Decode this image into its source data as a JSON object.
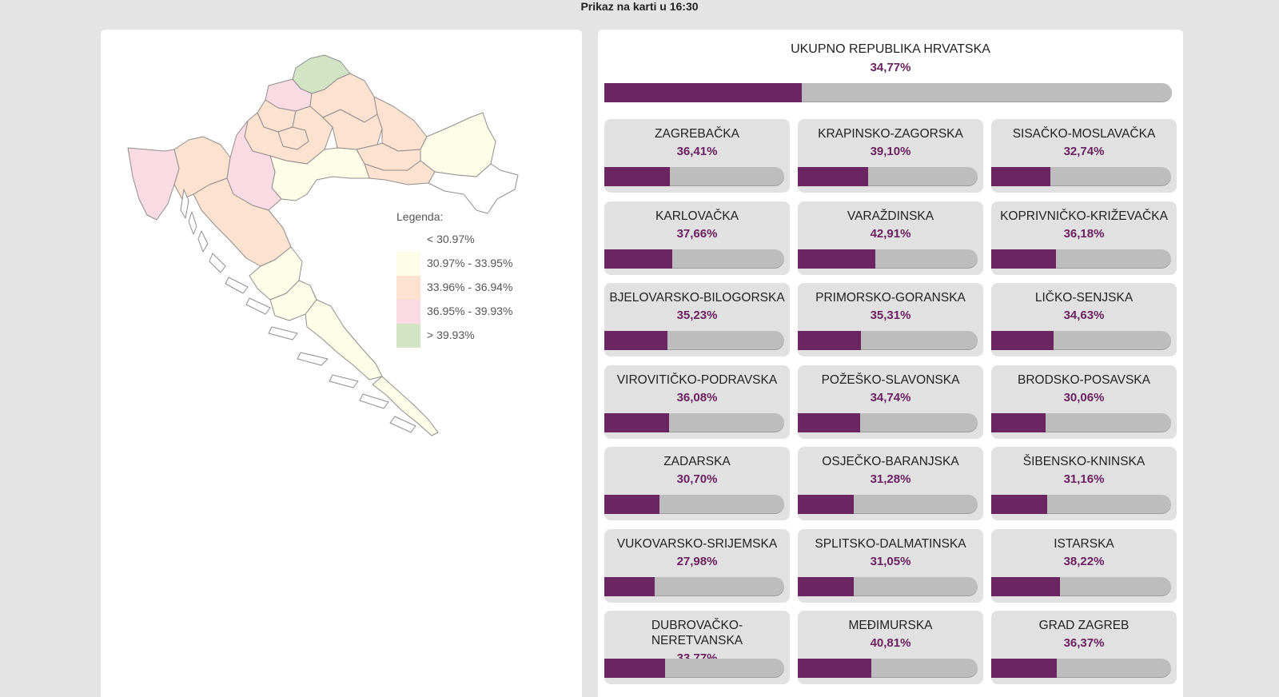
{
  "header": {
    "title": "Prikaz na karti u 16:30"
  },
  "map": {
    "legend": {
      "title": "Legenda:",
      "items": [
        {
          "label": "< 30.97%",
          "color": "#ffffff"
        },
        {
          "label": "30.97% - 33.95%",
          "color": "#fdfde8"
        },
        {
          "label": "33.96% - 36.94%",
          "color": "#fde2cf"
        },
        {
          "label": "36.95% - 39.93%",
          "color": "#fbdbe3"
        },
        {
          "label": "> 39.93%",
          "color": "#d2e4c3"
        }
      ]
    }
  },
  "colors": {
    "accent": "#6b2560",
    "bar_track": "#bdbdbd",
    "card_bg": "#e1e1e1"
  },
  "total": {
    "name": "UKUPNO REPUBLIKA HRVATSKA",
    "percent": "34,77%",
    "value": 34.77
  },
  "counties": [
    {
      "name": "ZAGREBAČKA",
      "percent": "36,41%",
      "value": 36.41
    },
    {
      "name": "KRAPINSKO-ZAGORSKA",
      "percent": "39,10%",
      "value": 39.1
    },
    {
      "name": "SISAČKO-MOSLAVAČKA",
      "percent": "32,74%",
      "value": 32.74
    },
    {
      "name": "KARLOVAČKA",
      "percent": "37,66%",
      "value": 37.66
    },
    {
      "name": "VARAŽDINSKA",
      "percent": "42,91%",
      "value": 42.91
    },
    {
      "name": "KOPRIVNIČKO-KRIŽEVAČKA",
      "percent": "36,18%",
      "value": 36.18
    },
    {
      "name": "BJELOVARSKO-BILOGORSKA",
      "percent": "35,23%",
      "value": 35.23
    },
    {
      "name": "PRIMORSKO-GORANSKA",
      "percent": "35,31%",
      "value": 35.31
    },
    {
      "name": "LIČKO-SENJSKA",
      "percent": "34,63%",
      "value": 34.63
    },
    {
      "name": "VIROVITIČKO-PODRAVSKA",
      "percent": "36,08%",
      "value": 36.08
    },
    {
      "name": "POŽEŠKO-SLAVONSKA",
      "percent": "34,74%",
      "value": 34.74
    },
    {
      "name": "BRODSKO-POSAVSKA",
      "percent": "30,06%",
      "value": 30.06
    },
    {
      "name": "ZADARSKA",
      "percent": "30,70%",
      "value": 30.7
    },
    {
      "name": "OSJEČKO-BARANJSKA",
      "percent": "31,28%",
      "value": 31.28
    },
    {
      "name": "ŠIBENSKO-KNINSKA",
      "percent": "31,16%",
      "value": 31.16
    },
    {
      "name": "VUKOVARSKO-SRIJEMSKA",
      "percent": "27,98%",
      "value": 27.98
    },
    {
      "name": "SPLITSKO-DALMATINSKA",
      "percent": "31,05%",
      "value": 31.05
    },
    {
      "name": "ISTARSKA",
      "percent": "38,22%",
      "value": 38.22
    },
    {
      "name": "DUBROVAČKO-\nNERETVANSKA",
      "percent": "33,77%",
      "value": 33.77
    },
    {
      "name": "MEĐIMURSKA",
      "percent": "40,81%",
      "value": 40.81
    },
    {
      "name": "GRAD ZAGREB",
      "percent": "36,37%",
      "value": 36.37
    }
  ]
}
